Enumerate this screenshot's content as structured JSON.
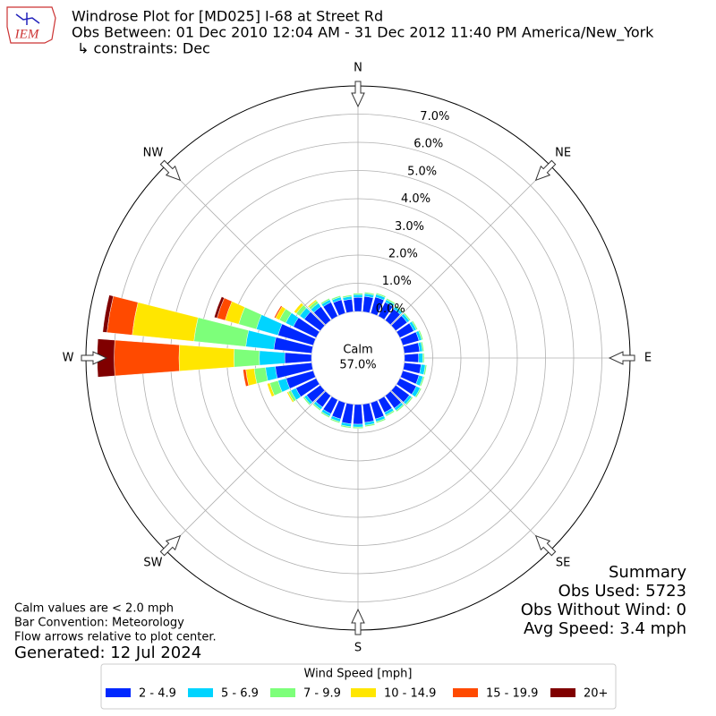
{
  "chart_data": {
    "type": "windrose",
    "title": "Windrose Plot for [MD025] I-68 at Street Rd",
    "subtitle": "Obs Between: 01 Dec 2010 12:04 AM - 31 Dec 2012 11:40 PM America/New_York",
    "constraints": "↳ constraints: Dec",
    "logo_text": "IEM",
    "direction_labels": [
      "N",
      "NE",
      "E",
      "SE",
      "S",
      "SW",
      "W",
      "NW"
    ],
    "x": [
      0,
      10,
      20,
      30,
      40,
      50,
      60,
      70,
      80,
      90,
      100,
      110,
      120,
      130,
      140,
      150,
      160,
      170,
      180,
      190,
      200,
      210,
      220,
      230,
      240,
      250,
      260,
      270,
      280,
      290,
      300,
      310,
      320,
      330,
      340,
      350
    ],
    "ylim": [
      0,
      8
    ],
    "yticks": [
      {
        "value": 0,
        "label": "0.0%"
      },
      {
        "value": 1,
        "label": "1.0%"
      },
      {
        "value": 2,
        "label": "2.0%"
      },
      {
        "value": 3,
        "label": "3.0%"
      },
      {
        "value": 4,
        "label": "4.0%"
      },
      {
        "value": 5,
        "label": "5.0%"
      },
      {
        "value": 6,
        "label": "6.0%"
      },
      {
        "value": 7,
        "label": "7.0%"
      }
    ],
    "calm_label": "Calm",
    "calm": 57.0,
    "calm_value_label": "57.0%",
    "legend_title": "Wind Speed [mph]",
    "series": [
      {
        "name": "2 - 4.9",
        "color": "#0028ff",
        "values": [
          0.5,
          0.55,
          0.6,
          0.55,
          0.5,
          0.5,
          0.55,
          0.6,
          0.55,
          0.5,
          0.6,
          0.6,
          0.65,
          0.6,
          0.55,
          0.5,
          0.6,
          0.65,
          0.7,
          0.7,
          0.6,
          0.55,
          0.5,
          0.6,
          0.8,
          1.0,
          1.3,
          0.95,
          1.35,
          1.3,
          0.9,
          0.7,
          0.6,
          0.55,
          0.5,
          0.45
        ]
      },
      {
        "name": "5 - 6.9",
        "color": "#00d4ff",
        "values": [
          0.1,
          0.1,
          0.1,
          0.1,
          0.1,
          0.1,
          0.1,
          0.1,
          0.1,
          0.15,
          0.15,
          0.15,
          0.15,
          0.1,
          0.1,
          0.1,
          0.1,
          0.1,
          0.1,
          0.1,
          0.1,
          0.1,
          0.1,
          0.1,
          0.2,
          0.3,
          0.35,
          0.9,
          1.0,
          0.8,
          0.3,
          0.2,
          0.15,
          0.1,
          0.1,
          0.1
        ]
      },
      {
        "name": "7 - 9.9",
        "color": "#7dff7a",
        "values": [
          0.05,
          0.05,
          0.05,
          0.05,
          0.05,
          0.05,
          0.05,
          0.05,
          0.05,
          0.05,
          0.05,
          0.05,
          0.05,
          0.05,
          0.05,
          0.05,
          0.05,
          0.05,
          0.05,
          0.05,
          0.05,
          0.05,
          0.05,
          0.05,
          0.1,
          0.3,
          0.4,
          0.9,
          1.85,
          0.65,
          0.25,
          0.15,
          0.1,
          0.05,
          0.05,
          0.05
        ]
      },
      {
        "name": "10 - 14.9",
        "color": "#ffe600",
        "values": [
          0,
          0,
          0,
          0,
          0,
          0,
          0,
          0,
          0,
          0,
          0,
          0,
          0,
          0,
          0,
          0,
          0,
          0,
          0,
          0,
          0,
          0,
          0,
          0,
          0.05,
          0.1,
          0.3,
          1.95,
          2.2,
          0.5,
          0.15,
          0.1,
          0.05,
          0,
          0,
          0
        ]
      },
      {
        "name": "15 - 19.9",
        "color": "#ff4a00",
        "values": [
          0,
          0,
          0,
          0,
          0,
          0,
          0,
          0,
          0,
          0,
          0,
          0,
          0,
          0,
          0,
          0,
          0,
          0,
          0,
          0,
          0,
          0,
          0,
          0,
          0,
          0,
          0.1,
          2.3,
          0.9,
          0.3,
          0.05,
          0,
          0,
          0,
          0,
          0
        ]
      },
      {
        "name": "20+",
        "color": "#800000",
        "values": [
          0,
          0,
          0,
          0,
          0,
          0,
          0,
          0,
          0,
          0,
          0,
          0,
          0,
          0,
          0,
          0,
          0,
          0,
          0,
          0,
          0,
          0,
          0,
          0,
          0,
          0,
          0,
          0.6,
          0.15,
          0.1,
          0,
          0,
          0,
          0,
          0,
          0
        ]
      }
    ],
    "summary": [
      "Summary",
      "Obs Used: 5723",
      "Obs Without Wind: 0",
      "Avg Speed: 3.4 mph"
    ],
    "notes": [
      "Calm values are < 2.0 mph",
      "Bar Convention: Meteorology",
      "Flow arrows relative to plot center."
    ],
    "generated": "Generated: 12 Jul 2024"
  }
}
